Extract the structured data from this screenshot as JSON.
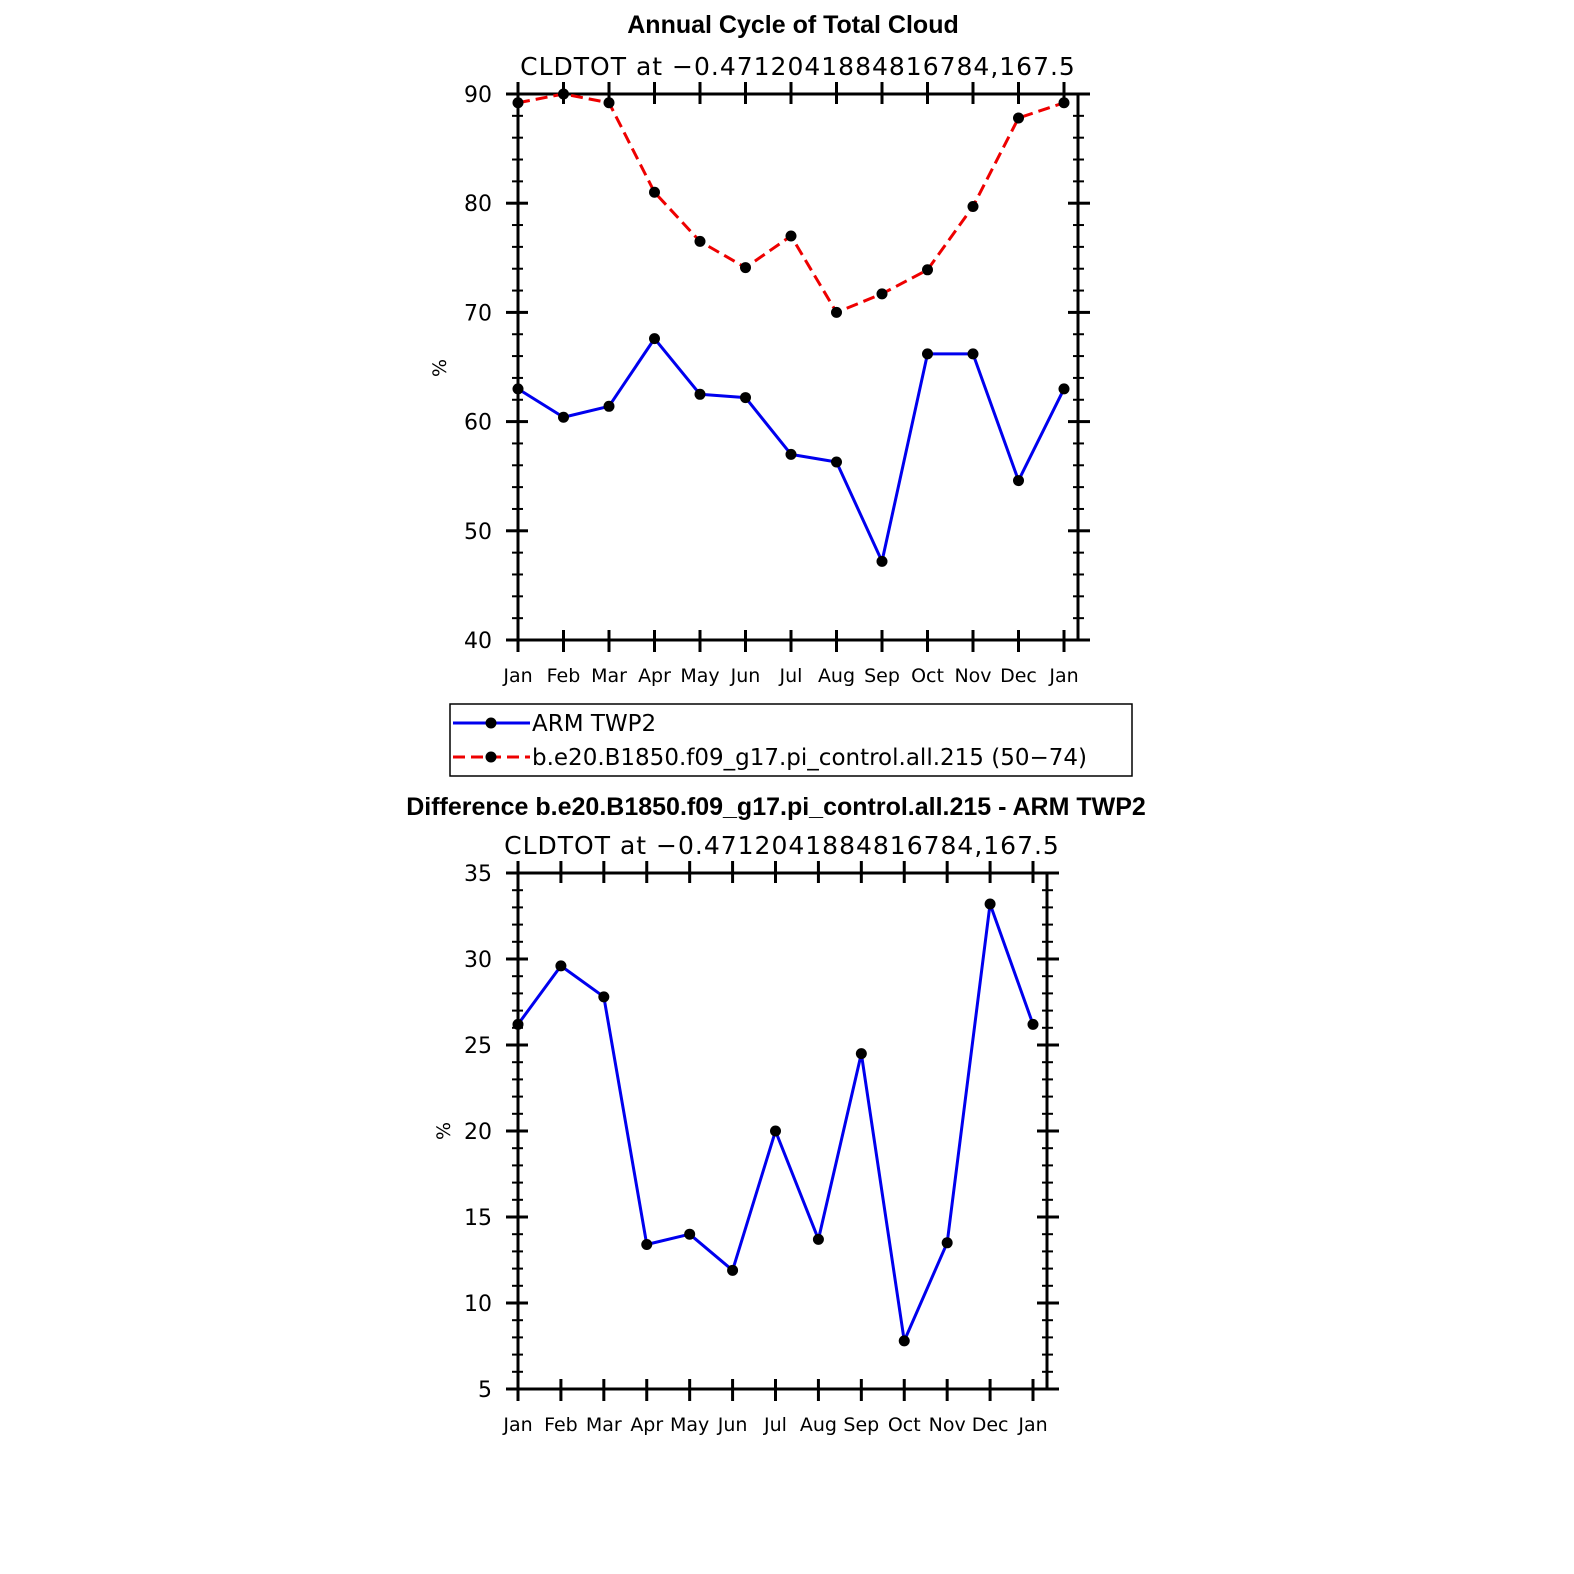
{
  "colors": {
    "obs": "#0000ee",
    "model": "#ee0000",
    "marker": "#000000"
  },
  "chart_data": [
    {
      "type": "line",
      "title": "Annual Cycle of Total Cloud",
      "subtitle": "CLDTOT at −0.4712041884816784,167.5",
      "xlabel": "",
      "ylabel": "%",
      "categories": [
        "Jan",
        "Feb",
        "Mar",
        "Apr",
        "May",
        "Jun",
        "Jul",
        "Aug",
        "Sep",
        "Oct",
        "Nov",
        "Dec",
        "Jan"
      ],
      "ylim": [
        40,
        90
      ],
      "yticks": [
        40,
        50,
        60,
        70,
        80,
        90
      ],
      "series": [
        {
          "name": "ARM TWP2",
          "style": "solid",
          "color": "#0000ee",
          "values": [
            63.0,
            60.4,
            61.4,
            67.6,
            62.5,
            62.2,
            57.0,
            56.3,
            47.2,
            66.2,
            66.2,
            54.6,
            63.0
          ]
        },
        {
          "name": "b.e20.B1850.f09_g17.pi_control.all.215 (50−74)",
          "style": "dashed",
          "color": "#ee0000",
          "values": [
            89.2,
            90.0,
            89.2,
            81.0,
            76.5,
            74.1,
            77.0,
            70.0,
            71.7,
            73.9,
            79.7,
            87.8,
            89.2
          ]
        }
      ]
    },
    {
      "type": "line",
      "title": "Difference b.e20.B1850.f09_g17.pi_control.all.215 - ARM TWP2",
      "subtitle": "CLDTOT at −0.4712041884816784,167.5",
      "xlabel": "",
      "ylabel": "%",
      "categories": [
        "Jan",
        "Feb",
        "Mar",
        "Apr",
        "May",
        "Jun",
        "Jul",
        "Aug",
        "Sep",
        "Oct",
        "Nov",
        "Dec",
        "Jan"
      ],
      "ylim": [
        5,
        35
      ],
      "yticks": [
        5,
        10,
        15,
        20,
        25,
        30,
        35
      ],
      "series": [
        {
          "name": "Difference",
          "style": "solid",
          "color": "#0000ee",
          "values": [
            26.2,
            29.6,
            27.8,
            13.4,
            14.0,
            11.9,
            20.0,
            13.7,
            24.5,
            7.8,
            13.5,
            33.2,
            26.2
          ]
        }
      ]
    }
  ]
}
